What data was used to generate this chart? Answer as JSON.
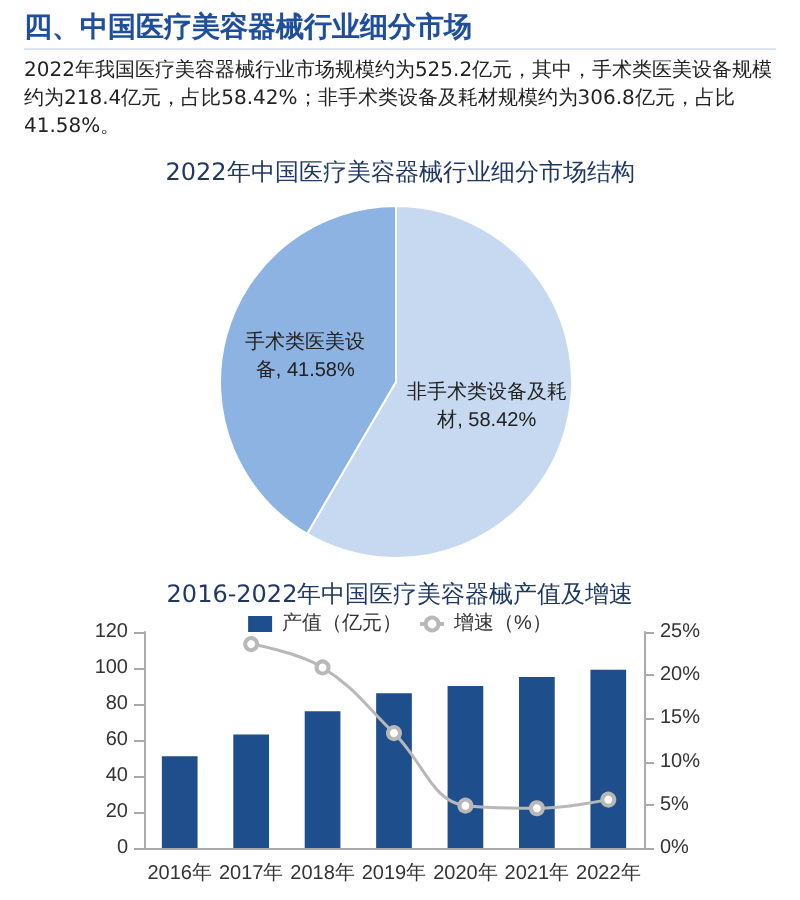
{
  "chart_data": [
    {
      "type": "pie",
      "title": "2022年中国医疗美容器械行业细分市场结构",
      "annotations": [
        "四、中国医疗美容器械行业细分市场",
        "2022年我国医疗美容器械行业市场规模约为525.2亿元，其中，手术类医美设备规模约为218.4亿元，占比58.42%；非手术类设备及耗材规模约为306.8亿元，占比41.58%。"
      ],
      "categories": [
        "手术类医美设备",
        "非手术类设备及耗材"
      ],
      "values": [
        41.58,
        58.42
      ],
      "value_labels": [
        "41.58%",
        "58.42%"
      ],
      "colors": [
        "#8db3e2",
        "#c6d9f0"
      ]
    },
    {
      "type": "bar",
      "title": "2016-2022年中国医疗美容器械产值及增速",
      "categories": [
        "2016年",
        "2017年",
        "2018年",
        "2019年",
        "2020年",
        "2021年",
        "2022年"
      ],
      "series": [
        {
          "name": "产值（亿元）",
          "color": "#1f4e8c",
          "values": [
            51,
            63,
            76,
            86,
            90,
            95,
            99
          ]
        },
        {
          "name": "增速（%）",
          "type": "line",
          "axis": "y2",
          "color": "#b8b8b8",
          "values": [
            null,
            23.6,
            20.9,
            13.3,
            4.9,
            4.6,
            5.6
          ]
        }
      ],
      "ylim": [
        0,
        120
      ],
      "yticks": [
        0,
        20,
        40,
        60,
        80,
        100,
        120
      ],
      "y2lim": [
        0,
        25
      ],
      "y2ticks": [
        {
          "value": 0,
          "label": "0%"
        },
        {
          "value": 5,
          "label": "5%"
        },
        {
          "value": 10,
          "label": "10%"
        },
        {
          "value": 15,
          "label": "15%"
        },
        {
          "value": 20,
          "label": "20%"
        },
        {
          "value": 25,
          "label": "25%"
        }
      ],
      "legend": "top",
      "marker": "circle"
    }
  ]
}
